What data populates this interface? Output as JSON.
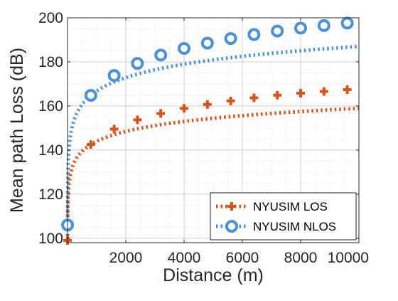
{
  "chart_data": {
    "type": "line",
    "title": "",
    "xlabel": "Distance (m)",
    "ylabel": "Mean path Loss (dB)",
    "xlim": [
      0,
      10000
    ],
    "ylim": [
      98,
      200
    ],
    "x_ticks": [
      2000,
      4000,
      6000,
      8000,
      10000
    ],
    "y_ticks": [
      100,
      120,
      140,
      160,
      180,
      200
    ],
    "x_tick_labels": [
      "2000",
      "4000",
      "6000",
      "8000",
      "10000"
    ],
    "y_tick_labels": [
      "100",
      "120",
      "140",
      "160",
      "180",
      "200"
    ],
    "grid": true,
    "minor_grid": true,
    "legend_position": "bottom-right",
    "series": [
      {
        "name": "NYUSIM LOS",
        "color": "#D95319",
        "line_style": "dotted",
        "marker": "plus",
        "x": [
          1,
          800,
          1600,
          2400,
          3200,
          4000,
          4800,
          5600,
          6400,
          7200,
          8000,
          8800,
          9600
        ],
        "y": [
          99.0,
          142.5,
          149.5,
          153.7,
          156.6,
          158.9,
          160.7,
          162.3,
          163.7,
          164.9,
          165.8,
          166.6,
          167.4
        ]
      },
      {
        "name": "NYUSIM NLOS",
        "color": "#4A90D9",
        "line_style": "dotted",
        "marker": "circle",
        "x": [
          1,
          800,
          1600,
          2400,
          3200,
          4000,
          4800,
          5600,
          6400,
          7200,
          8000,
          8800,
          9600
        ],
        "y": [
          106.0,
          164.8,
          173.8,
          179.3,
          183.1,
          186.1,
          188.5,
          190.6,
          192.4,
          194.0,
          195.3,
          196.5,
          197.6
        ]
      }
    ]
  }
}
